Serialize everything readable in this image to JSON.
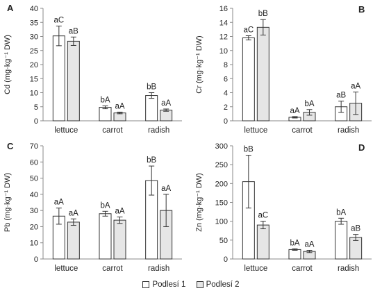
{
  "legend": {
    "series1_label": "Podlesí 1",
    "series2_label": "Podlesí 2"
  },
  "colors": {
    "series1": "#ffffff",
    "series2": "#e6e6e6",
    "stroke": "#333333",
    "axis": "#888888"
  },
  "chart_data": [
    {
      "type": "bar",
      "panel_label": "A",
      "ylabel": "Cd (mg·kg⁻¹ DW)",
      "categories": [
        "lettuce",
        "carrot",
        "radish"
      ],
      "ylim": [
        0,
        40
      ],
      "yticks": [
        0,
        5,
        10,
        15,
        20,
        25,
        30,
        35,
        40
      ],
      "series": [
        {
          "name": "Podlesí 1",
          "values": [
            30.2,
            4.8,
            9.0
          ],
          "errors": [
            3.5,
            0.5,
            1.0
          ],
          "labels": [
            "aC",
            "bA",
            "bB"
          ]
        },
        {
          "name": "Podlesí 2",
          "values": [
            28.3,
            2.8,
            3.8
          ],
          "errors": [
            1.5,
            0.3,
            0.4
          ],
          "labels": [
            "aB",
            "aA",
            "aA"
          ]
        }
      ]
    },
    {
      "type": "bar",
      "panel_label": "B",
      "ylabel": "Cr (mg·kg⁻¹ DW)",
      "categories": [
        "lettuce",
        "carrot",
        "radish"
      ],
      "ylim": [
        0,
        16
      ],
      "yticks": [
        0,
        2,
        4,
        6,
        8,
        10,
        12,
        14,
        16
      ],
      "series": [
        {
          "name": "Podlesí 1",
          "values": [
            11.8,
            0.5,
            2.0
          ],
          "errors": [
            0.3,
            0.1,
            0.8
          ],
          "labels": [
            "aC",
            "aA",
            "aB"
          ]
        },
        {
          "name": "Podlesí 2",
          "values": [
            13.3,
            1.2,
            2.5
          ],
          "errors": [
            1.1,
            0.4,
            1.6
          ],
          "labels": [
            "bB",
            "bA",
            "aA"
          ]
        }
      ]
    },
    {
      "type": "bar",
      "panel_label": "C",
      "ylabel": "Pb (mg·kg⁻¹ DW)",
      "categories": [
        "lettuce",
        "carrot",
        "radish"
      ],
      "ylim": [
        0,
        70
      ],
      "yticks": [
        0,
        10,
        20,
        30,
        40,
        50,
        60,
        70
      ],
      "series": [
        {
          "name": "Podlesí 1",
          "values": [
            26.5,
            28.0,
            48.5
          ],
          "errors": [
            5.0,
            1.5,
            9.0
          ],
          "labels": [
            "aA",
            "bA",
            "bB"
          ]
        },
        {
          "name": "Podlesí 2",
          "values": [
            22.8,
            24.0,
            30.0
          ],
          "errors": [
            2.0,
            2.0,
            10.0
          ],
          "labels": [
            "aA",
            "aA",
            "aA"
          ]
        }
      ]
    },
    {
      "type": "bar",
      "panel_label": "D",
      "ylabel": "Zn (mg·kg⁻¹ DW)",
      "categories": [
        "lettuce",
        "carrot",
        "radish"
      ],
      "ylim": [
        0,
        300
      ],
      "yticks": [
        0,
        50,
        100,
        150,
        200,
        250,
        300
      ],
      "series": [
        {
          "name": "Podlesí 1",
          "values": [
            205,
            25,
            100
          ],
          "errors": [
            70,
            2,
            8
          ],
          "labels": [
            "bB",
            "bA",
            "bA"
          ]
        },
        {
          "name": "Podlesí 2",
          "values": [
            90,
            20,
            57
          ],
          "errors": [
            10,
            3,
            8
          ],
          "labels": [
            "aC",
            "aA",
            "aB"
          ]
        }
      ]
    }
  ]
}
